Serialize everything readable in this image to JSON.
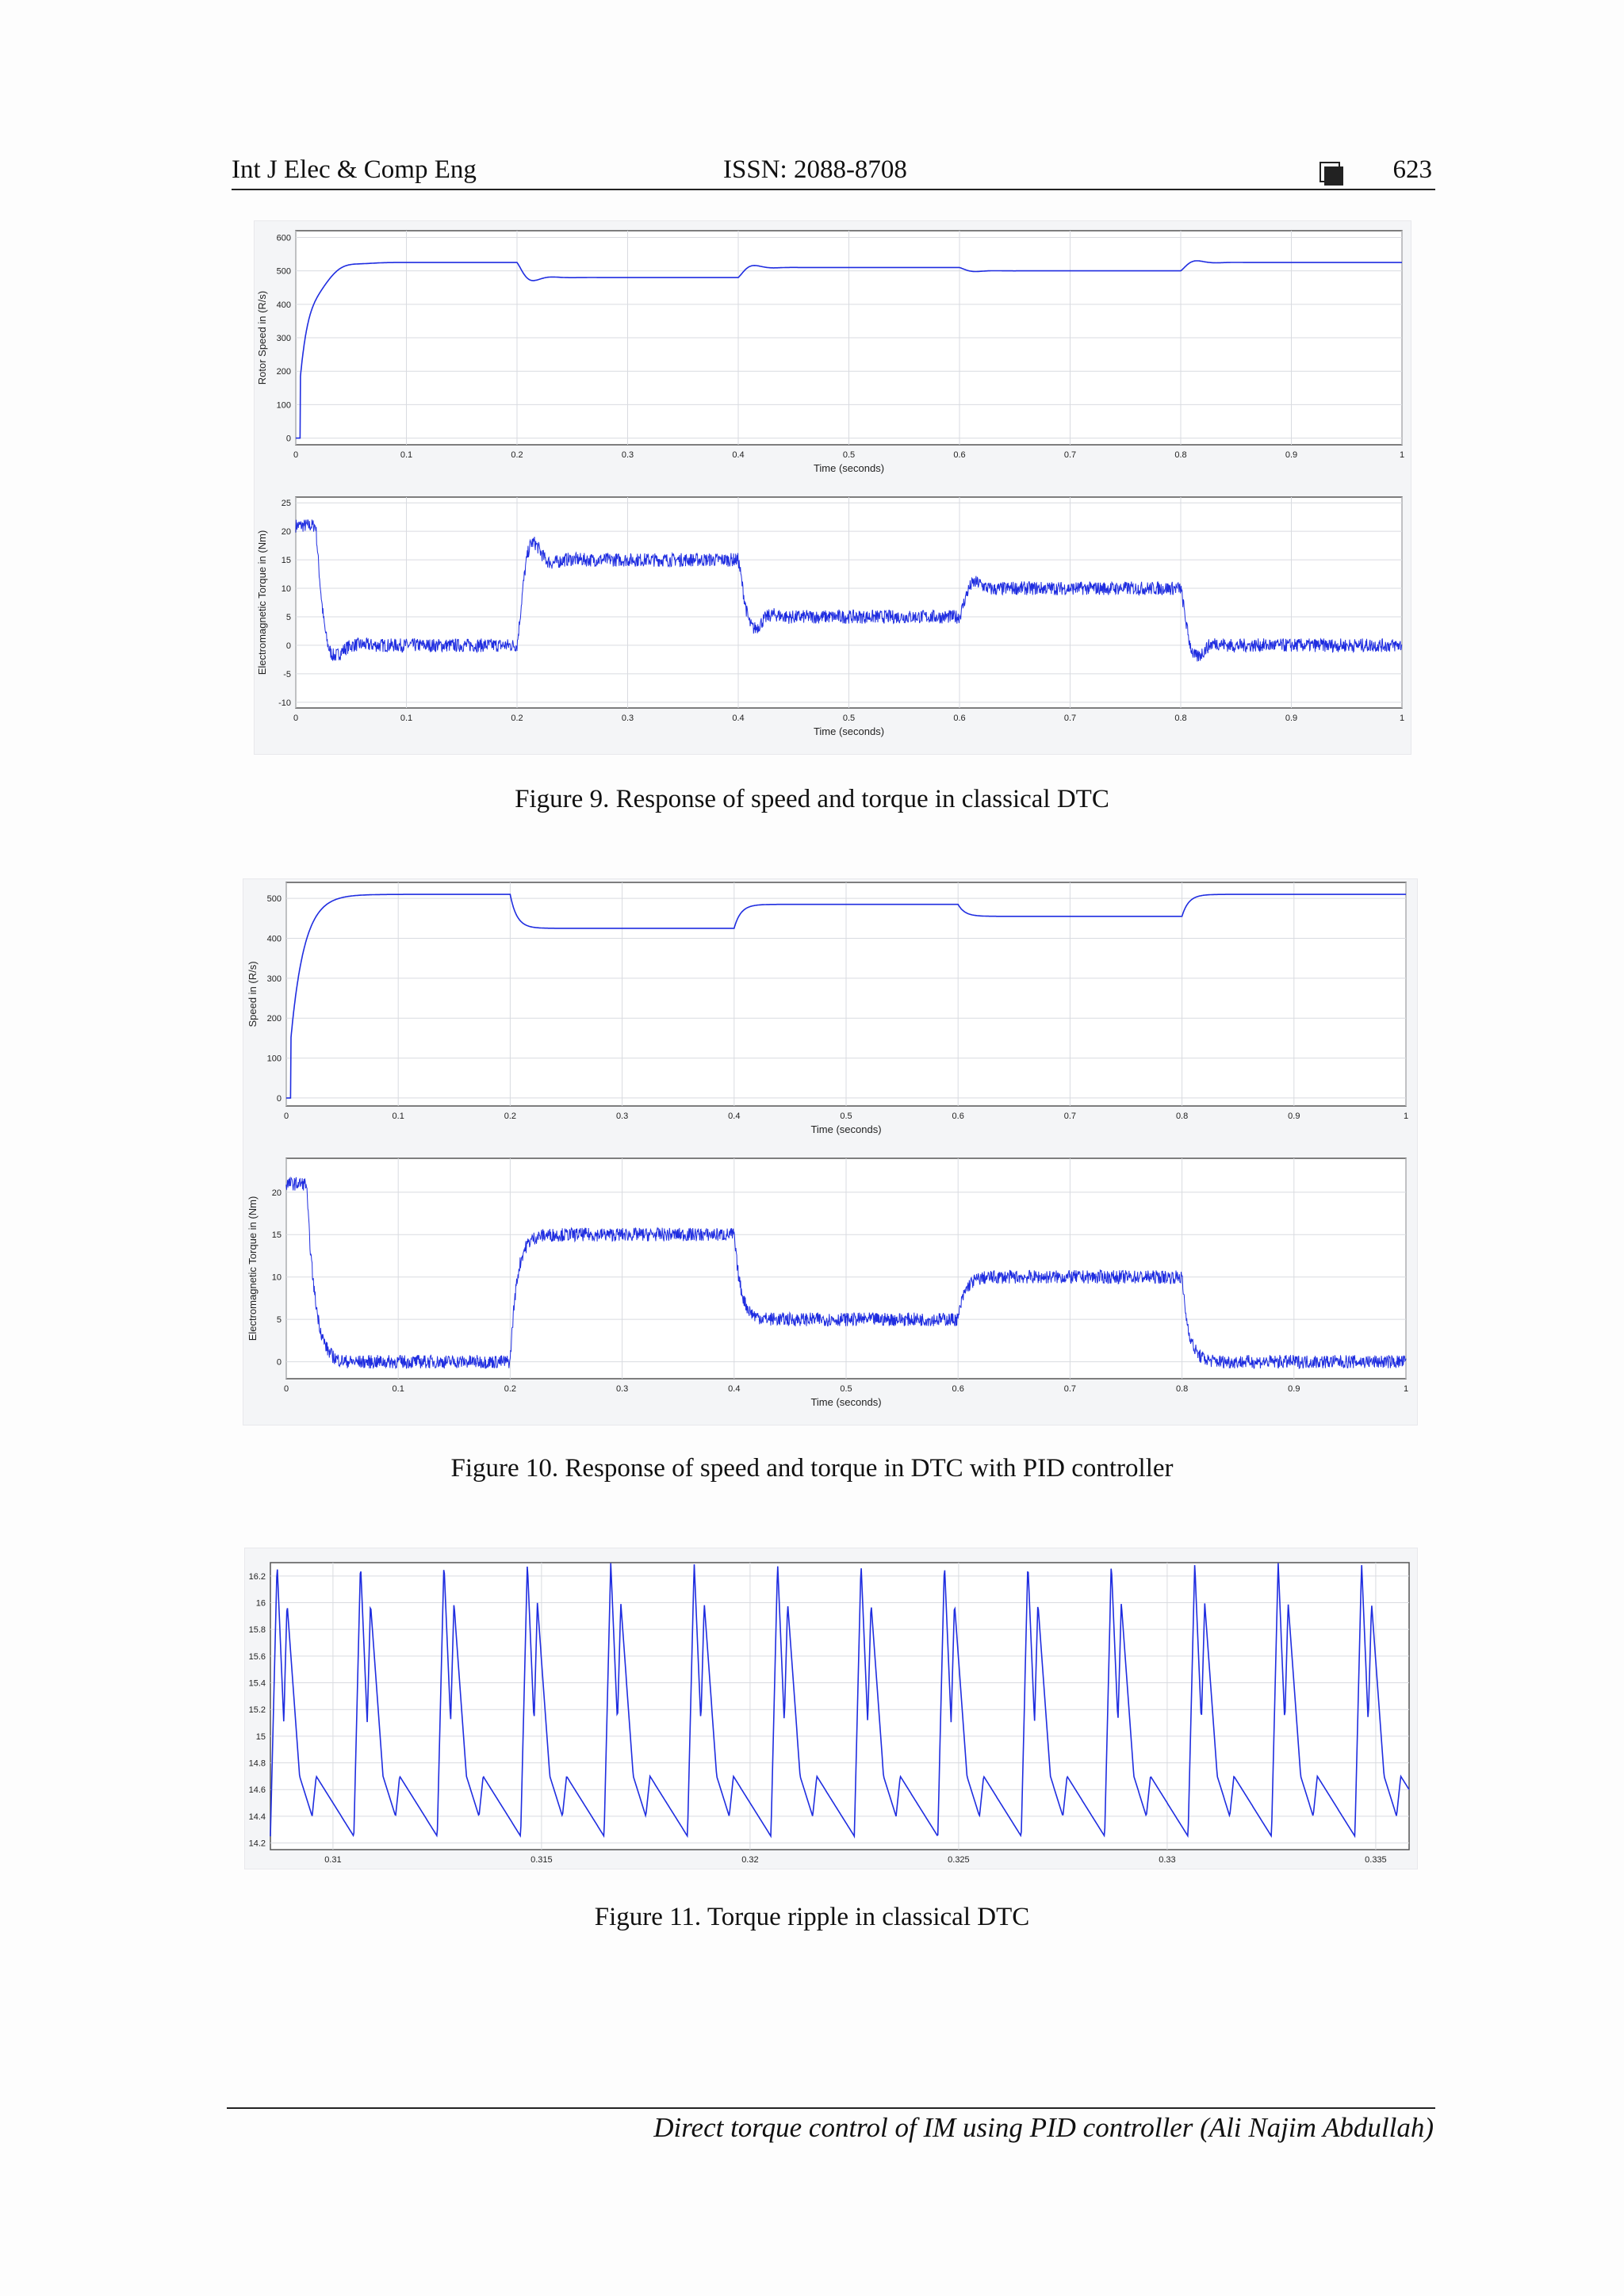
{
  "header": {
    "journal": "Int J Elec & Comp Eng",
    "issn": "ISSN: 2088-8708",
    "page": "623"
  },
  "figures": [
    {
      "caption": "Figure 9. Response of speed and torque in classical DTC"
    },
    {
      "caption": "Figure 10. Response of speed and torque in DTC with PID controller"
    },
    {
      "caption": "Figure 11. Torque ripple in classical DTC"
    }
  ],
  "footer": {
    "text": "Direct torque control of IM using PID controller (Ali Najim Abdullah)"
  },
  "colors": {
    "trace": "#1f2de0",
    "grid": "#d9dbe0",
    "axis": "#555555"
  },
  "chart_data": [
    {
      "type": "line",
      "figure": 9,
      "panel": "top",
      "xlabel": "Time (seconds)",
      "ylabel": "Rotor Speed in (R/s)",
      "xlim": [
        0,
        1
      ],
      "ylim": [
        -20,
        620
      ],
      "xticks": [
        "0",
        "0.1",
        "0.2",
        "0.3",
        "0.4",
        "0.5",
        "0.6",
        "0.7",
        "0.8",
        "0.9",
        "1"
      ],
      "yticks": [
        "0",
        "100",
        "200",
        "300",
        "400",
        "500",
        "600"
      ],
      "steps": [
        [
          0,
          525
        ],
        [
          0.2,
          480
        ],
        [
          0.4,
          510
        ],
        [
          0.6,
          500
        ],
        [
          0.8,
          525
        ]
      ],
      "noise": 0
    },
    {
      "type": "line",
      "figure": 9,
      "panel": "bottom",
      "xlabel": "Time (seconds)",
      "ylabel": "Electromagnetic Torque in (Nm)",
      "xlim": [
        0,
        1
      ],
      "ylim": [
        -11,
        26
      ],
      "xticks": [
        "0",
        "0.1",
        "0.2",
        "0.3",
        "0.4",
        "0.5",
        "0.6",
        "0.7",
        "0.8",
        "0.9",
        "1"
      ],
      "yticks": [
        "-10",
        "-5",
        "0",
        "5",
        "10",
        "15",
        "20",
        "25"
      ],
      "steps": [
        [
          0,
          0
        ],
        [
          0.2,
          15
        ],
        [
          0.4,
          5
        ],
        [
          0.6,
          10
        ],
        [
          0.8,
          0
        ]
      ],
      "noise": 1.2
    },
    {
      "type": "line",
      "figure": 10,
      "panel": "top",
      "xlabel": "Time (seconds)",
      "ylabel": "Speed in (R/s)",
      "xlim": [
        0,
        1
      ],
      "ylim": [
        -20,
        540
      ],
      "xticks": [
        "0",
        "0.1",
        "0.2",
        "0.3",
        "0.4",
        "0.5",
        "0.6",
        "0.7",
        "0.8",
        "0.9",
        "1"
      ],
      "yticks": [
        "0",
        "100",
        "200",
        "300",
        "400",
        "500"
      ],
      "steps": [
        [
          0,
          510
        ],
        [
          0.2,
          425
        ],
        [
          0.4,
          485
        ],
        [
          0.6,
          455
        ],
        [
          0.8,
          510
        ]
      ],
      "noise": 0
    },
    {
      "type": "line",
      "figure": 10,
      "panel": "bottom",
      "xlabel": "Time (seconds)",
      "ylabel": "Electromagnetic Torque in (Nm)",
      "xlim": [
        0,
        1
      ],
      "ylim": [
        -2,
        24
      ],
      "xticks": [
        "0",
        "0.1",
        "0.2",
        "0.3",
        "0.4",
        "0.5",
        "0.6",
        "0.7",
        "0.8",
        "0.9",
        "1"
      ],
      "yticks": [
        "0",
        "5",
        "10",
        "15",
        "20"
      ],
      "steps": [
        [
          0,
          0
        ],
        [
          0.2,
          15
        ],
        [
          0.4,
          5
        ],
        [
          0.6,
          10
        ],
        [
          0.8,
          0
        ]
      ],
      "noise": 0.8
    },
    {
      "type": "line",
      "figure": 11,
      "panel": "single",
      "xlabel": "",
      "ylabel": "",
      "xlim": [
        0.3085,
        0.3358
      ],
      "ylim": [
        14.15,
        16.3
      ],
      "xticks": [
        "0.31",
        "0.315",
        "0.32",
        "0.325",
        "0.33",
        "0.335"
      ],
      "xtick_values": [
        0.31,
        0.315,
        0.32,
        0.325,
        0.33,
        0.335
      ],
      "yticks": [
        "14.2",
        "14.4",
        "14.6",
        "14.8",
        "15",
        "15.2",
        "15.4",
        "15.6",
        "15.8",
        "16",
        "16.2"
      ],
      "ytick_values": [
        14.2,
        14.4,
        14.6,
        14.8,
        15,
        15.2,
        15.4,
        15.6,
        15.8,
        16,
        16.2
      ],
      "ripple": {
        "period": 0.002,
        "min": 14.25,
        "max": 16.3,
        "start": 0.3085
      }
    }
  ]
}
